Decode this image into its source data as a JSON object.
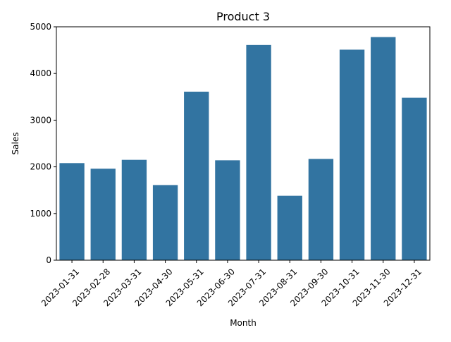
{
  "chart_data": {
    "type": "bar",
    "title": "Product 3",
    "xlabel": "Month",
    "ylabel": "Sales",
    "categories": [
      "2023-01-31",
      "2023-02-28",
      "2023-03-31",
      "2023-04-30",
      "2023-05-31",
      "2023-06-30",
      "2023-07-31",
      "2023-08-31",
      "2023-09-30",
      "2023-10-31",
      "2023-11-30",
      "2023-12-31"
    ],
    "values": [
      2080,
      1960,
      2150,
      1610,
      3610,
      2140,
      4610,
      1380,
      2170,
      4510,
      4780,
      3480
    ],
    "ylim": [
      0,
      5000
    ],
    "yticks": [
      "0",
      "1000",
      "2000",
      "3000",
      "4000",
      "5000"
    ],
    "bar_color": "#3274a1",
    "grid": false,
    "legend": "none"
  }
}
